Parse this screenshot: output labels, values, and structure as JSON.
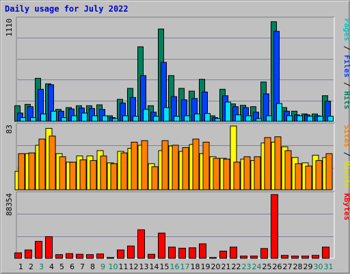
{
  "title": "Daily usage for July 2022",
  "colors": {
    "background": "#c0c0c0",
    "title": "#0000cc",
    "grid": "#8080a0",
    "hits": "#00805c",
    "files": "#0040ff",
    "pages": "#00e0ff",
    "visits": "#ffff00",
    "sites": "#ff8000",
    "kbytes": "#ff0000",
    "weekend_label": "#00805c",
    "weekday_label": "#000000"
  },
  "chart_data": [
    {
      "type": "bar",
      "panel": "top",
      "scale_max": 1110,
      "scale_label": "1110",
      "legend": [
        {
          "text": "Pages",
          "color": "#00c8c8"
        },
        {
          "text": " / ",
          "color": "#000000"
        },
        {
          "text": "Files",
          "color": "#0040ff"
        },
        {
          "text": " / ",
          "color": "#000000"
        },
        {
          "text": "Hits",
          "color": "#00805c"
        }
      ],
      "categories": [
        "1",
        "2",
        "3",
        "4",
        "5",
        "6",
        "7",
        "8",
        "9",
        "10",
        "11",
        "12",
        "13",
        "14",
        "15",
        "16",
        "17",
        "18",
        "19",
        "20",
        "21",
        "22",
        "23",
        "24",
        "25",
        "26",
        "27",
        "28",
        "29",
        "30",
        "31"
      ],
      "series": [
        {
          "name": "Hits",
          "values": [
            170,
            185,
            470,
            410,
            130,
            150,
            170,
            170,
            180,
            60,
            240,
            360,
            815,
            170,
            1010,
            500,
            360,
            330,
            460,
            60,
            350,
            190,
            175,
            160,
            430,
            1090,
            150,
            110,
            80,
            80,
            280
          ]
        },
        {
          "name": "Files",
          "values": [
            90,
            160,
            350,
            400,
            110,
            135,
            145,
            140,
            130,
            40,
            200,
            260,
            500,
            100,
            645,
            270,
            235,
            250,
            320,
            40,
            280,
            160,
            150,
            100,
            300,
            985,
            110,
            70,
            70,
            60,
            220
          ]
        },
        {
          "name": "Pages",
          "values": [
            40,
            40,
            80,
            110,
            40,
            60,
            90,
            60,
            60,
            30,
            60,
            55,
            130,
            55,
            150,
            55,
            60,
            80,
            85,
            30,
            210,
            70,
            60,
            30,
            60,
            195,
            60,
            60,
            55,
            55,
            55
          ]
        }
      ]
    },
    {
      "type": "bar",
      "panel": "middle",
      "scale_max": 83,
      "scale_label": "83",
      "legend": [
        {
          "text": "Sites",
          "color": "#ff8000"
        },
        {
          "text": " / ",
          "color": "#000000"
        },
        {
          "text": "Visits",
          "color": "#e0e000"
        }
      ],
      "categories": [
        "1",
        "2",
        "3",
        "4",
        "5",
        "6",
        "7",
        "8",
        "9",
        "10",
        "11",
        "12",
        "13",
        "14",
        "15",
        "16",
        "17",
        "18",
        "19",
        "20",
        "21",
        "22",
        "23",
        "24",
        "25",
        "26",
        "27",
        "28",
        "29",
        "30",
        "31"
      ],
      "series": [
        {
          "name": "Visits",
          "values": [
            24,
            47,
            58,
            80,
            47,
            36,
            44,
            44,
            51,
            35,
            50,
            54,
            58,
            34,
            51,
            57,
            50,
            59,
            47,
            43,
            41,
            83,
            40,
            38,
            61,
            62,
            56,
            42,
            35,
            45,
            42
          ]
        },
        {
          "name": "Sites",
          "values": [
            47,
            48,
            66,
            70,
            43,
            36,
            39,
            38,
            44,
            34,
            48,
            62,
            64,
            30,
            64,
            58,
            55,
            66,
            62,
            41,
            40,
            36,
            43,
            43,
            68,
            69,
            51,
            34,
            31,
            38,
            47
          ]
        }
      ]
    },
    {
      "type": "bar",
      "panel": "bottom",
      "scale_max": 88354,
      "scale_label": "88354",
      "legend": [
        {
          "text": "KBytes",
          "color": "#ff0000"
        }
      ],
      "categories": [
        "1",
        "2",
        "3",
        "4",
        "5",
        "6",
        "7",
        "8",
        "9",
        "10",
        "11",
        "12",
        "13",
        "14",
        "15",
        "16",
        "17",
        "18",
        "19",
        "20",
        "21",
        "22",
        "23",
        "24",
        "25",
        "26",
        "27",
        "28",
        "29",
        "30",
        "31"
      ],
      "series": [
        {
          "name": "KBytes",
          "values": [
            7500,
            11500,
            23500,
            30000,
            5000,
            6500,
            5500,
            5000,
            6000,
            1000,
            11500,
            17000,
            39500,
            5500,
            35000,
            15500,
            14000,
            14500,
            20000,
            1000,
            10000,
            15500,
            3000,
            3000,
            13500,
            88354,
            4000,
            3000,
            3000,
            4000,
            15500
          ]
        }
      ]
    }
  ],
  "x_labels": [
    {
      "text": "1",
      "weekend": false
    },
    {
      "text": "2",
      "weekend": false
    },
    {
      "text": "3",
      "weekend": true
    },
    {
      "text": "4",
      "weekend": false
    },
    {
      "text": "5",
      "weekend": false
    },
    {
      "text": "6",
      "weekend": false
    },
    {
      "text": "7",
      "weekend": false
    },
    {
      "text": "8",
      "weekend": false
    },
    {
      "text": "9",
      "weekend": true
    },
    {
      "text": "10",
      "weekend": true
    },
    {
      "text": "11",
      "weekend": false
    },
    {
      "text": "12",
      "weekend": false
    },
    {
      "text": "13",
      "weekend": false
    },
    {
      "text": "14",
      "weekend": false
    },
    {
      "text": "15",
      "weekend": false
    },
    {
      "text": "16",
      "weekend": true
    },
    {
      "text": "17",
      "weekend": true
    },
    {
      "text": "18",
      "weekend": false
    },
    {
      "text": "19",
      "weekend": false
    },
    {
      "text": "20",
      "weekend": false
    },
    {
      "text": "21",
      "weekend": false
    },
    {
      "text": "22",
      "weekend": false
    },
    {
      "text": "23",
      "weekend": true
    },
    {
      "text": "24",
      "weekend": true
    },
    {
      "text": "25",
      "weekend": false
    },
    {
      "text": "26",
      "weekend": false
    },
    {
      "text": "27",
      "weekend": false
    },
    {
      "text": "28",
      "weekend": false
    },
    {
      "text": "29",
      "weekend": false
    },
    {
      "text": "30",
      "weekend": true
    },
    {
      "text": "31",
      "weekend": true
    }
  ]
}
